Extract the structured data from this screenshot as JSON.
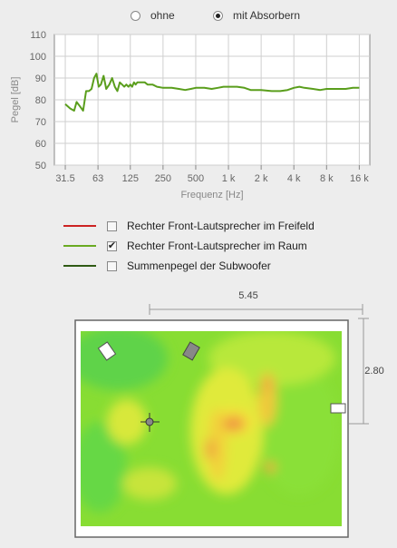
{
  "radio_group": {
    "options": [
      {
        "label": "ohne",
        "selected": false
      },
      {
        "label": "mit Absorbern",
        "selected": true
      }
    ]
  },
  "chart_data": {
    "type": "line",
    "xlabel": "Frequenz [Hz]",
    "ylabel": "Pegel [dB]",
    "x_scale": "log",
    "x_ticks": [
      {
        "value": 31.5,
        "label": "31.5"
      },
      {
        "value": 63,
        "label": "63"
      },
      {
        "value": 125,
        "label": "125"
      },
      {
        "value": 250,
        "label": "250"
      },
      {
        "value": 500,
        "label": "500"
      },
      {
        "value": 1000,
        "label": "1 k"
      },
      {
        "value": 2000,
        "label": "2 k"
      },
      {
        "value": 4000,
        "label": "4 k"
      },
      {
        "value": 8000,
        "label": "8 k"
      },
      {
        "value": 16000,
        "label": "16 k"
      }
    ],
    "y_ticks": [
      50,
      60,
      70,
      80,
      90,
      100,
      110
    ],
    "ylim": [
      50,
      110
    ],
    "xlim": [
      25,
      20000
    ],
    "grid": true,
    "series": [
      {
        "name": "Rechter Front-Lautsprecher im Raum",
        "color": "#5a9e1c",
        "x": [
          31.5,
          35,
          38,
          40,
          43,
          46,
          49,
          52,
          55,
          58,
          61,
          64,
          67,
          71,
          75,
          80,
          85,
          90,
          95,
          100,
          105,
          110,
          115,
          120,
          125,
          130,
          135,
          140,
          145,
          150,
          155,
          160,
          170,
          180,
          190,
          200,
          220,
          250,
          300,
          350,
          400,
          450,
          500,
          600,
          700,
          800,
          900,
          1000,
          1200,
          1400,
          1600,
          1800,
          2000,
          2500,
          3000,
          3500,
          4000,
          4500,
          5000,
          6000,
          7000,
          8000,
          10000,
          12000,
          14000,
          16000
        ],
        "y": [
          78,
          76,
          75,
          79,
          77,
          75,
          84,
          84,
          85,
          90,
          92,
          86,
          87,
          91,
          85,
          87,
          90,
          86,
          84,
          88,
          87,
          86,
          87,
          86,
          87,
          86,
          88,
          87,
          88,
          88,
          88,
          88,
          88,
          87,
          87,
          87,
          86,
          85.5,
          85.5,
          85,
          84.5,
          85,
          85.5,
          85.5,
          85,
          85.5,
          86,
          86,
          86,
          85.5,
          84.5,
          84.5,
          84.5,
          84,
          84,
          84.5,
          85.5,
          86,
          85.5,
          85,
          84.5,
          85,
          85,
          85,
          85.5,
          85.5
        ]
      }
    ]
  },
  "legend": {
    "items": [
      {
        "label": "Rechter Front-Lautsprecher im Freifeld",
        "color": "#cc2222",
        "checked": false,
        "check_glyph": ""
      },
      {
        "label": "Rechter Front-Lautsprecher im Raum",
        "color": "#6aaa22",
        "checked": true,
        "check_glyph": "✔"
      },
      {
        "label": "Summenpegel der Subwoofer",
        "color": "#2f5a14",
        "checked": false,
        "check_glyph": ""
      }
    ]
  },
  "room": {
    "width_label": "5.45",
    "depth_label": "2.80"
  }
}
